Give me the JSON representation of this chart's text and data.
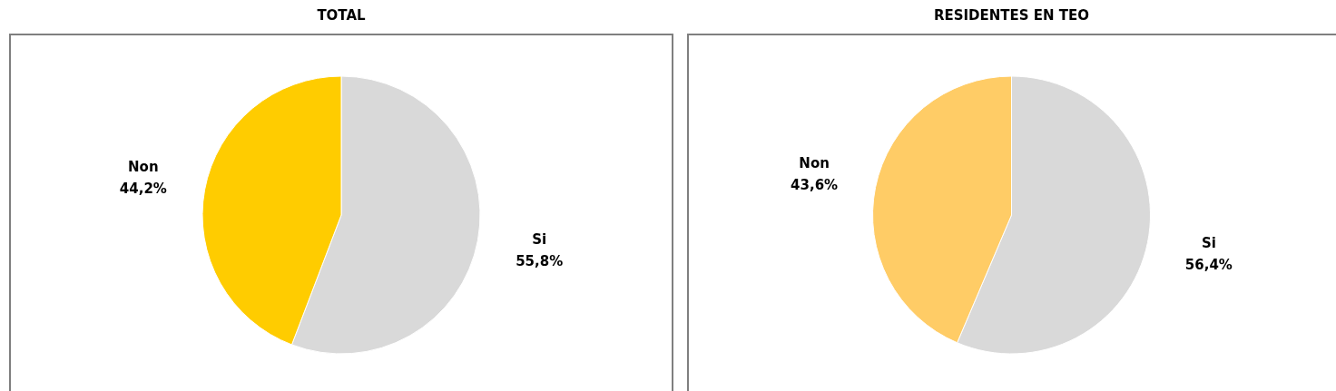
{
  "chart_data": [
    {
      "type": "pie",
      "title": "TOTAL",
      "categories": [
        "Si",
        "Non"
      ],
      "values": [
        55.8,
        44.2
      ],
      "colors": [
        "#d9d9d9",
        "#ffcc00"
      ],
      "value_labels": [
        "55,8%",
        "44,2%"
      ]
    },
    {
      "type": "pie",
      "title": "RESIDENTES EN TEO",
      "categories": [
        "Si",
        "Non"
      ],
      "values": [
        56.4,
        43.6
      ],
      "colors": [
        "#d9d9d9",
        "#ffcc66"
      ],
      "value_labels": [
        "56,4%",
        "43,6%"
      ]
    }
  ]
}
